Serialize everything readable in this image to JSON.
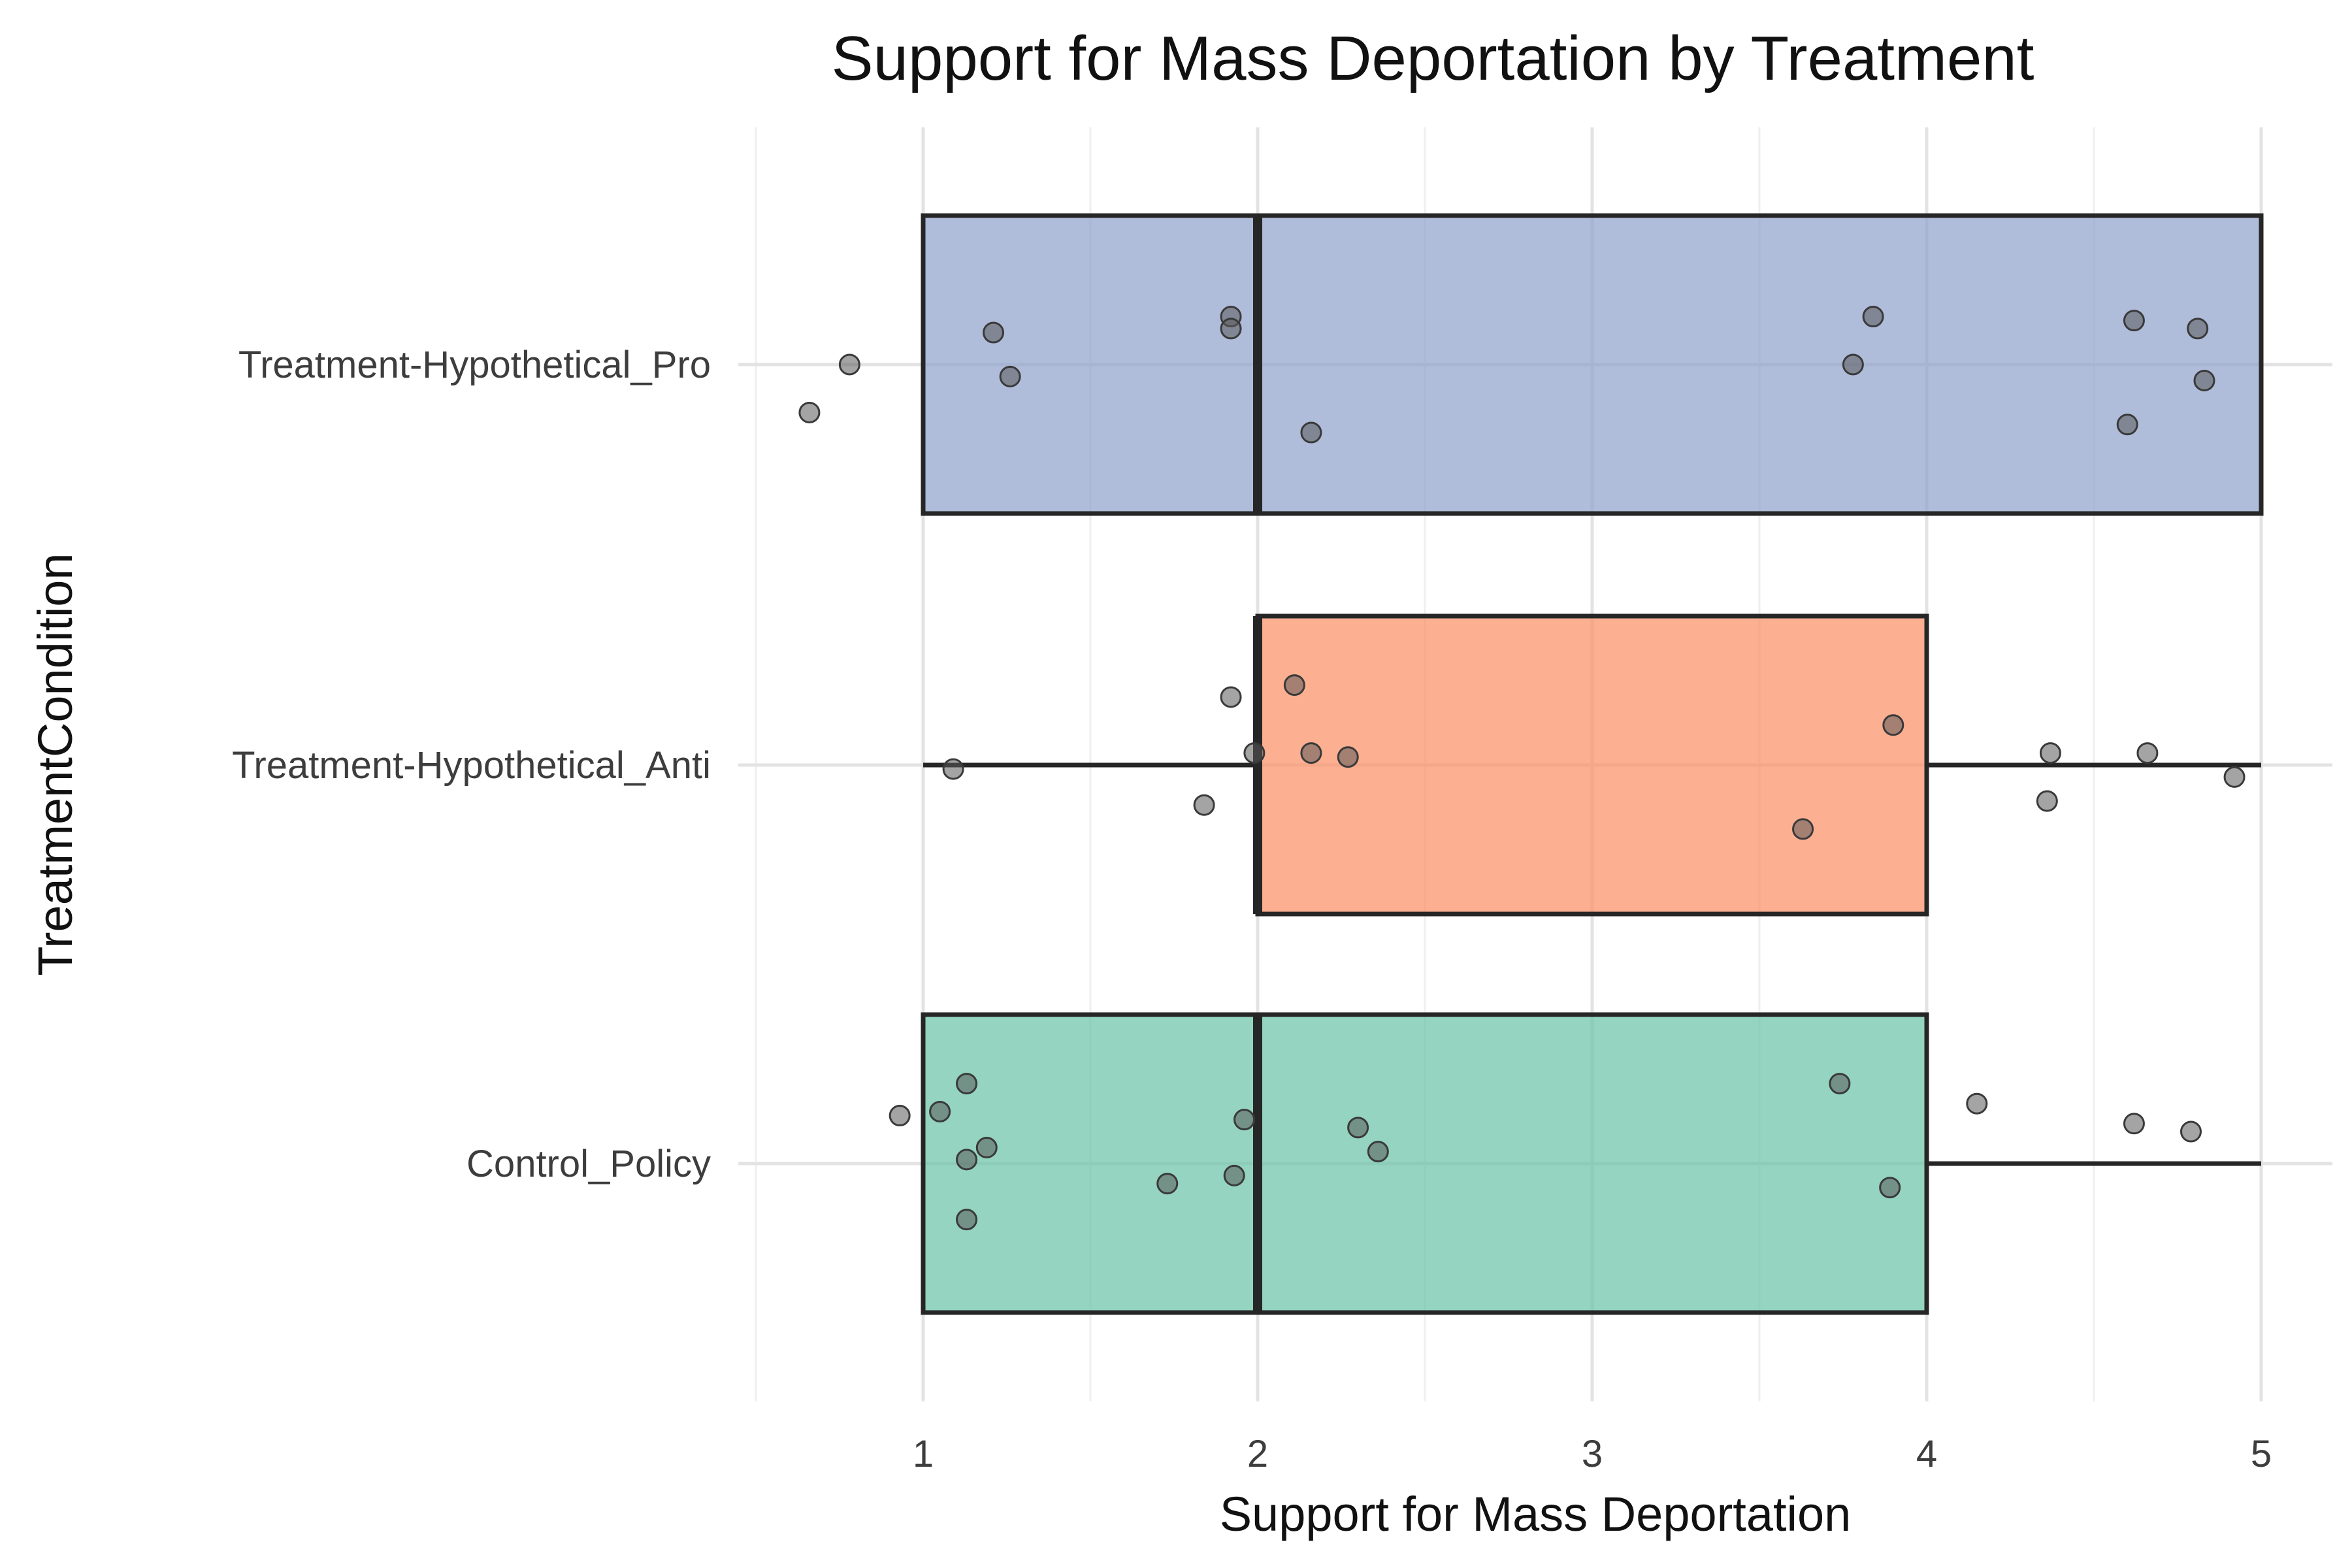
{
  "chart_data": {
    "type": "box",
    "title": "Support for Mass Deportation by Treatment",
    "xlabel": "Support for Mass Deportation",
    "ylabel": "TreatmentCondition",
    "xlim": [
      0.5,
      5.2
    ],
    "x_ticks": [
      1,
      2,
      3,
      4,
      5
    ],
    "x_tick_labels": [
      "1",
      "2",
      "3",
      "4",
      "5"
    ],
    "grid": true,
    "categories": [
      "Treatment-Hypothetical_Pro",
      "Treatment-Hypothetical_Anti",
      "Control_Policy"
    ],
    "series": [
      {
        "category": "Treatment-Hypothetical_Pro",
        "color": "#8da0cb",
        "min": 1,
        "q1": 1,
        "median": 2,
        "q3": 5,
        "max": 5,
        "points": [
          {
            "x": 0.66,
            "j": -0.12
          },
          {
            "x": 0.78,
            "j": 0.0
          },
          {
            "x": 1.21,
            "j": 0.08
          },
          {
            "x": 1.26,
            "j": -0.03
          },
          {
            "x": 1.92,
            "j": 0.12
          },
          {
            "x": 1.92,
            "j": 0.09
          },
          {
            "x": 2.16,
            "j": -0.17
          },
          {
            "x": 3.78,
            "j": 0.0
          },
          {
            "x": 3.84,
            "j": 0.12
          },
          {
            "x": 4.6,
            "j": -0.15
          },
          {
            "x": 4.62,
            "j": 0.11
          },
          {
            "x": 4.81,
            "j": 0.09
          },
          {
            "x": 4.83,
            "j": -0.04
          }
        ]
      },
      {
        "category": "Treatment-Hypothetical_Anti",
        "color": "#fc8d62",
        "min": 1,
        "q1": 2,
        "median": 2,
        "q3": 4,
        "max": 5,
        "points": [
          {
            "x": 1.09,
            "j": -0.01
          },
          {
            "x": 1.84,
            "j": -0.1
          },
          {
            "x": 1.92,
            "j": 0.17
          },
          {
            "x": 1.99,
            "j": 0.03
          },
          {
            "x": 2.11,
            "j": 0.2
          },
          {
            "x": 2.16,
            "j": 0.03
          },
          {
            "x": 2.27,
            "j": 0.02
          },
          {
            "x": 3.63,
            "j": -0.16
          },
          {
            "x": 3.9,
            "j": 0.1
          },
          {
            "x": 4.36,
            "j": -0.09
          },
          {
            "x": 4.37,
            "j": 0.03
          },
          {
            "x": 4.66,
            "j": 0.03
          },
          {
            "x": 4.92,
            "j": -0.03
          }
        ]
      },
      {
        "category": "Control_Policy",
        "color": "#66c2a5",
        "min": 1,
        "q1": 1,
        "median": 2,
        "q3": 4,
        "max": 5,
        "points": [
          {
            "x": 0.93,
            "j": 0.12
          },
          {
            "x": 1.05,
            "j": 0.13
          },
          {
            "x": 1.13,
            "j": 0.2
          },
          {
            "x": 1.13,
            "j": 0.01
          },
          {
            "x": 1.13,
            "j": -0.14
          },
          {
            "x": 1.19,
            "j": 0.04
          },
          {
            "x": 1.73,
            "j": -0.05
          },
          {
            "x": 1.93,
            "j": -0.03
          },
          {
            "x": 1.96,
            "j": 0.11
          },
          {
            "x": 2.3,
            "j": 0.09
          },
          {
            "x": 2.36,
            "j": 0.03
          },
          {
            "x": 3.74,
            "j": 0.2
          },
          {
            "x": 3.89,
            "j": -0.06
          },
          {
            "x": 4.15,
            "j": 0.15
          },
          {
            "x": 4.62,
            "j": 0.1
          },
          {
            "x": 4.79,
            "j": 0.08
          }
        ]
      }
    ]
  }
}
